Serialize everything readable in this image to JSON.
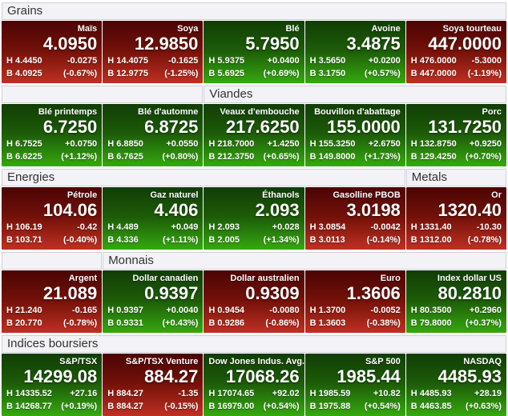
{
  "labels": {
    "high_prefix": "H",
    "low_prefix": "B"
  },
  "colors": {
    "header_bg": "#f2f2f7",
    "header_border": "#cfcfd8",
    "header_text": "#333333",
    "tile_text": "#ffffff",
    "up_top": "#113d05",
    "up_mid": "#1d5c08",
    "up_bottom": "#35a90f",
    "down_top": "#4a0404",
    "down_mid": "#741109",
    "down_bottom": "#bf3022"
  },
  "sections": [
    {
      "header_segments": [
        {
          "label": "Grains",
          "span": 5
        }
      ],
      "tiles": [
        {
          "name": "Maïs",
          "price": "4.0950",
          "high": "4.4450",
          "low": "4.0925",
          "change": "-0.0275",
          "change_pct": "(-0.67%)",
          "direction": "down"
        },
        {
          "name": "Soya",
          "price": "12.9850",
          "high": "14.4075",
          "low": "12.9775",
          "change": "-0.1625",
          "change_pct": "(-1.25%)",
          "direction": "down"
        },
        {
          "name": "Blé",
          "price": "5.7950",
          "high": "5.9375",
          "low": "5.6925",
          "change": "+0.0400",
          "change_pct": "(+0.69%)",
          "direction": "up"
        },
        {
          "name": "Avoine",
          "price": "3.4875",
          "high": "3.5650",
          "low": "3.1750",
          "change": "+0.0200",
          "change_pct": "(+0.57%)",
          "direction": "up"
        },
        {
          "name": "Soya tourteau",
          "price": "447.0000",
          "high": "476.0000",
          "low": "447.0000",
          "change": "-5.3000",
          "change_pct": "(-1.19%)",
          "direction": "down"
        }
      ]
    },
    {
      "header_segments": [
        {
          "label": "",
          "span": 2
        },
        {
          "label": "Viandes",
          "span": 3
        }
      ],
      "tiles": [
        {
          "name": "Blé printemps",
          "price": "6.7250",
          "high": "6.7525",
          "low": "6.6225",
          "change": "+0.0750",
          "change_pct": "(+1.12%)",
          "direction": "up"
        },
        {
          "name": "Blé d'automne",
          "price": "6.8725",
          "high": "6.8850",
          "low": "6.7625",
          "change": "+0.0550",
          "change_pct": "(+0.80%)",
          "direction": "up"
        },
        {
          "name": "Veaux d'embouche",
          "price": "217.6250",
          "high": "218.7000",
          "low": "212.3750",
          "change": "+1.4250",
          "change_pct": "(+0.65%)",
          "direction": "up"
        },
        {
          "name": "Bouvillon d'abattage",
          "price": "155.0000",
          "high": "155.3250",
          "low": "149.8000",
          "change": "+2.6750",
          "change_pct": "(+1.73%)",
          "direction": "up"
        },
        {
          "name": "Porc",
          "price": "131.7250",
          "high": "132.8750",
          "low": "129.4250",
          "change": "+0.9250",
          "change_pct": "(+0.70%)",
          "direction": "up"
        }
      ]
    },
    {
      "header_segments": [
        {
          "label": "Energies",
          "span": 4
        },
        {
          "label": "Metals",
          "span": 1
        }
      ],
      "tiles": [
        {
          "name": "Pétrole",
          "price": "104.06",
          "high": "106.19",
          "low": "103.71",
          "change": "-0.42",
          "change_pct": "(-0.40%)",
          "direction": "down"
        },
        {
          "name": "Gaz naturel",
          "price": "4.406",
          "high": "4.489",
          "low": "4.336",
          "change": "+0.049",
          "change_pct": "(+1.11%)",
          "direction": "up"
        },
        {
          "name": "Éthanols",
          "price": "2.093",
          "high": "2.093",
          "low": "2.005",
          "change": "+0.028",
          "change_pct": "(+1.34%)",
          "direction": "up"
        },
        {
          "name": "Gasolline PBOB",
          "price": "3.0198",
          "high": "3.0854",
          "low": "3.0113",
          "change": "-0.0042",
          "change_pct": "(-0.14%)",
          "direction": "down"
        },
        {
          "name": "Or",
          "price": "1320.40",
          "high": "1331.40",
          "low": "1312.00",
          "change": "-10.30",
          "change_pct": "(-0.78%)",
          "direction": "down"
        }
      ]
    },
    {
      "header_segments": [
        {
          "label": "",
          "span": 1
        },
        {
          "label": "Monnais",
          "span": 4
        }
      ],
      "tiles": [
        {
          "name": "Argent",
          "price": "21.089",
          "high": "21.240",
          "low": "20.770",
          "change": "-0.165",
          "change_pct": "(-0.78%)",
          "direction": "down"
        },
        {
          "name": "Dollar canadien",
          "price": "0.9397",
          "high": "0.9397",
          "low": "0.9331",
          "change": "+0.0040",
          "change_pct": "(+0.43%)",
          "direction": "up"
        },
        {
          "name": "Dollar australien",
          "price": "0.9309",
          "high": "0.9454",
          "low": "0.9286",
          "change": "-0.0080",
          "change_pct": "(-0.86%)",
          "direction": "down"
        },
        {
          "name": "Euro",
          "price": "1.3606",
          "high": "1.3700",
          "low": "1.3603",
          "change": "-0.0052",
          "change_pct": "(-0.38%)",
          "direction": "down"
        },
        {
          "name": "Index dollar US",
          "price": "80.2810",
          "high": "80.3500",
          "low": "79.8000",
          "change": "+0.2960",
          "change_pct": "(+0.37%)",
          "direction": "up"
        }
      ]
    },
    {
      "header_segments": [
        {
          "label": "Indices boursiers",
          "span": 5
        }
      ],
      "tiles": [
        {
          "name": "S&P/TSX",
          "price": "14299.08",
          "high": "14335.52",
          "low": "14268.77",
          "change": "+27.16",
          "change_pct": "(+0.19%)",
          "direction": "up"
        },
        {
          "name": "S&P/TSX Venture",
          "price": "884.27",
          "high": "884.27",
          "low": "884.27",
          "change": "-1.35",
          "change_pct": "(-0.15%)",
          "direction": "down"
        },
        {
          "name": "Dow Jones Indus. Avg.",
          "price": "17068.26",
          "high": "17074.65",
          "low": "16979.00",
          "change": "+92.02",
          "change_pct": "(+0.54%)",
          "direction": "up"
        },
        {
          "name": "S&P 500",
          "price": "1985.44",
          "high": "1985.59",
          "low": "1975.88",
          "change": "+10.82",
          "change_pct": "(+0.54%)",
          "direction": "up"
        },
        {
          "name": "NASDAQ",
          "price": "4485.93",
          "high": "4485.93",
          "low": "4463.85",
          "change": "+28.19",
          "change_pct": "(+0.63%)",
          "direction": "up"
        }
      ]
    }
  ]
}
